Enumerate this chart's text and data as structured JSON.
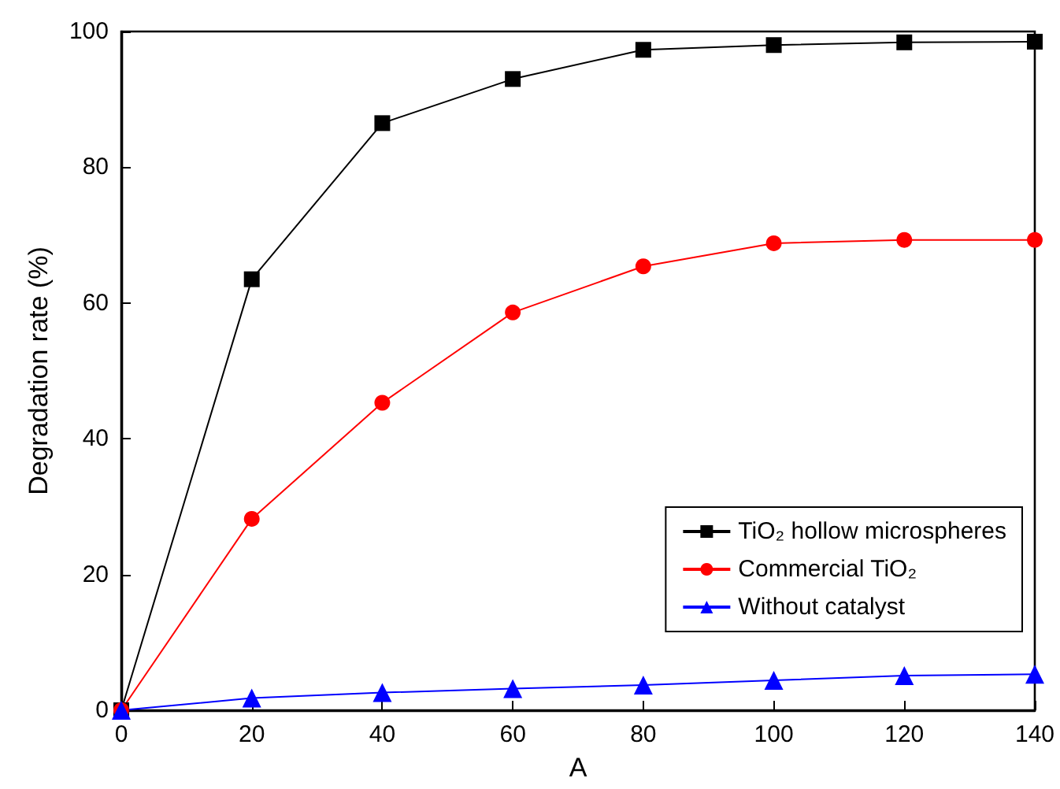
{
  "chart_data": {
    "type": "line",
    "xlabel": "A",
    "ylabel": "Degradation rate (%)",
    "x": [
      0,
      20,
      40,
      60,
      80,
      100,
      120,
      140
    ],
    "series": [
      {
        "name": "TiO₂ hollow microspheres",
        "color": "#000000",
        "marker": "square",
        "values": [
          0,
          63.5,
          86.5,
          93,
          97.3,
          98,
          98.4,
          98.5
        ]
      },
      {
        "name": "Commercial TiO₂",
        "color": "#ff0000",
        "marker": "circle",
        "values": [
          0,
          28.2,
          45.3,
          58.6,
          65.4,
          68.8,
          69.3,
          69.3
        ]
      },
      {
        "name": "Without catalyst",
        "color": "#0000ff",
        "marker": "triangle",
        "values": [
          0,
          1.8,
          2.6,
          3.2,
          3.7,
          4.4,
          5.1,
          5.3
        ]
      }
    ],
    "xlim": [
      0,
      140
    ],
    "xticks": [
      0,
      20,
      40,
      60,
      80,
      100,
      120,
      140
    ],
    "ylim": [
      0,
      100
    ],
    "yticks": [
      0,
      20,
      40,
      60,
      80,
      100
    ],
    "grid": false,
    "legend": "bottom right",
    "line_style": "solid"
  }
}
